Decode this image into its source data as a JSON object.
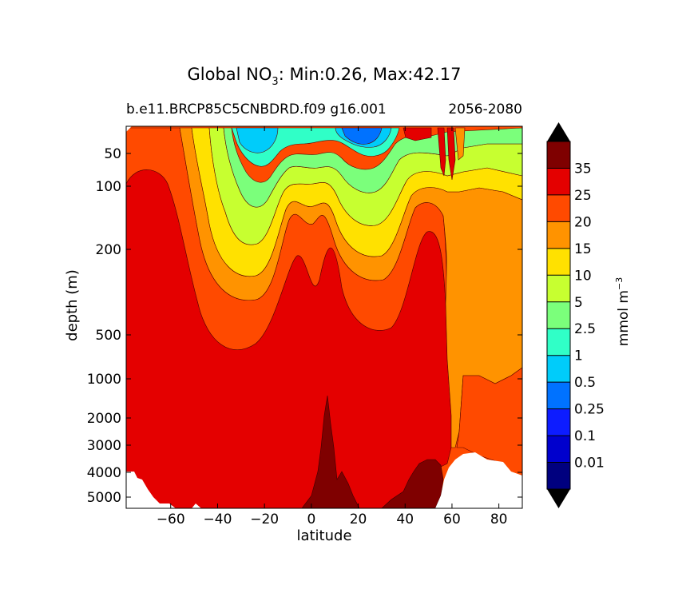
{
  "chart_data": {
    "type": "contour",
    "title_main": "Global NO",
    "title_sub": "3",
    "title_rest": ": Min:0.26, Max:42.17",
    "subtitle_left": "b.e11.BRCP85C5CNBDRD.f09 g16.001",
    "subtitle_right": "2056-2080",
    "xlabel": "latitude",
    "ylabel": "depth (m)",
    "xlim": [
      -79,
      90
    ],
    "ylim": [
      5500,
      10
    ],
    "x_ticks": [
      -60,
      -40,
      -20,
      0,
      20,
      40,
      60,
      80
    ],
    "x_tick_labels": [
      "−60",
      "−40",
      "−20",
      "0",
      "20",
      "40",
      "60",
      "80"
    ],
    "y_ticks": [
      50,
      100,
      200,
      500,
      1000,
      2000,
      3000,
      4000,
      5000
    ],
    "y_tick_labels": [
      "50",
      "100",
      "200",
      "500",
      "1000",
      "2000",
      "3000",
      "4000",
      "5000"
    ],
    "colorbar": {
      "label": "mmol m",
      "label_sup": "−3",
      "levels": [
        0.01,
        0.1,
        0.25,
        0.5,
        1,
        2.5,
        5,
        10,
        15,
        20,
        25,
        35
      ],
      "level_labels": [
        "0.01",
        "0.1",
        "0.25",
        "0.5",
        "1",
        "2.5",
        "5",
        "10",
        "15",
        "20",
        "25",
        "35"
      ],
      "colors": [
        "#00007f",
        "#0000cd",
        "#0d1cff",
        "#0072ff",
        "#00ccfa",
        "#30ffc7",
        "#7bff7b",
        "#c7ff30",
        "#ffe100",
        "#ff9300",
        "#ff4a00",
        "#e40000",
        "#7f0000"
      ],
      "extend": "both"
    },
    "bands": [
      {
        "level": "> 35",
        "color": "#7f0000"
      },
      {
        "level": "25-35",
        "color": "#e40000"
      },
      {
        "level": "20-25",
        "color": "#ff4a00"
      },
      {
        "level": "15-20",
        "color": "#ff9300"
      },
      {
        "level": "10-15",
        "color": "#ffe100"
      },
      {
        "level": "5-10",
        "color": "#c7ff30"
      },
      {
        "level": "2.5-5",
        "color": "#7bff7b"
      },
      {
        "level": "1-2.5",
        "color": "#30ffc7"
      },
      {
        "level": "0.5-1",
        "color": "#00ccfa"
      },
      {
        "level": "0.25-0.5",
        "color": "#0072ff"
      }
    ],
    "missing_color": "#ffffff"
  }
}
